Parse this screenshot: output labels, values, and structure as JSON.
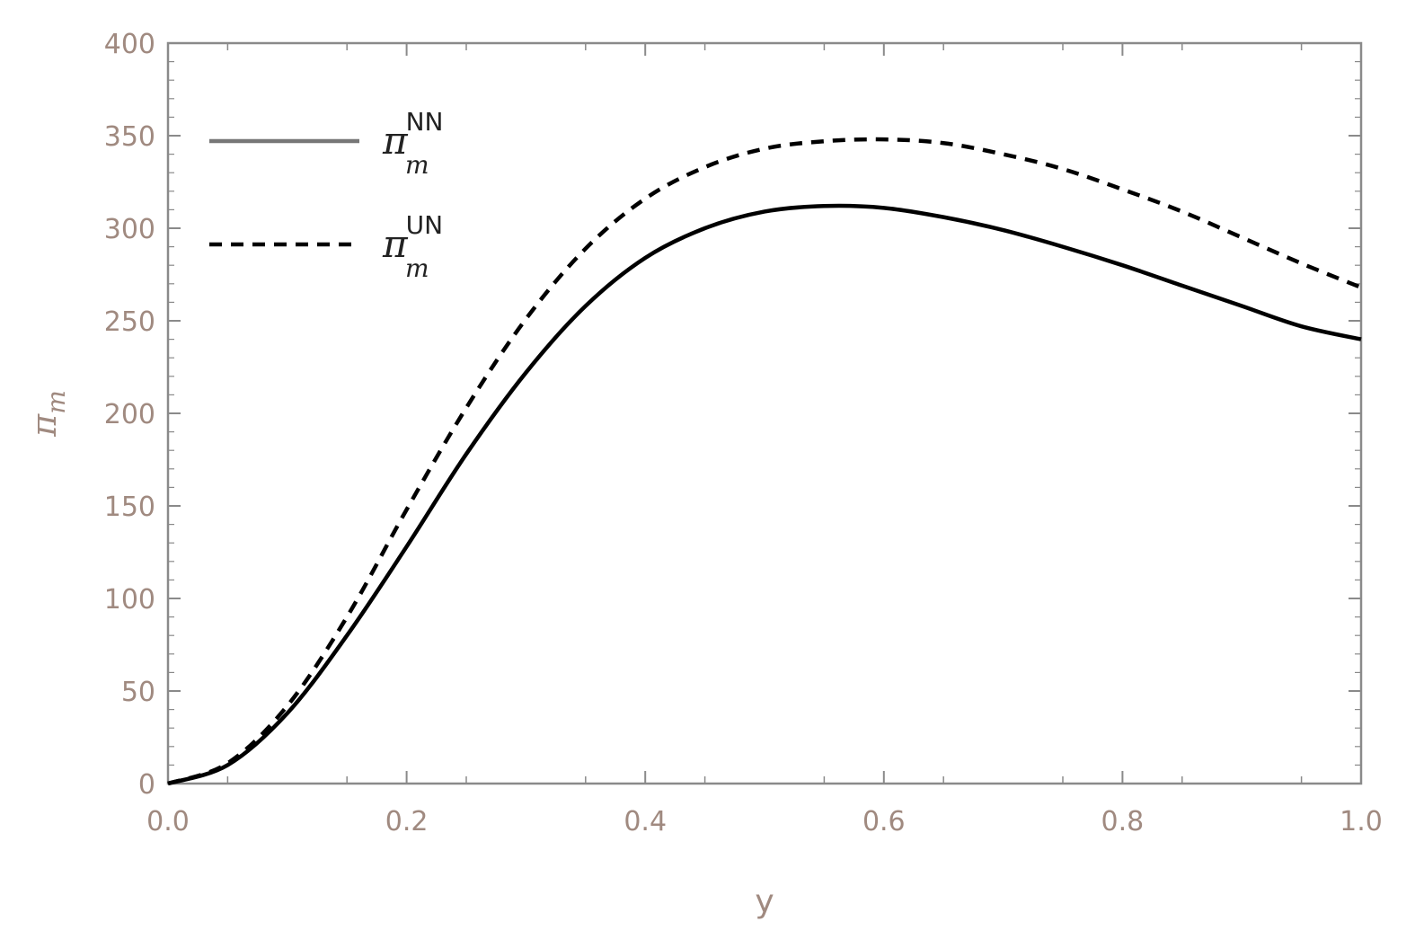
{
  "chart_data": {
    "type": "line",
    "title": "",
    "xlabel": "y",
    "ylabel": {
      "base": "π",
      "sub": "m"
    },
    "xlim": [
      0,
      1
    ],
    "ylim": [
      0,
      400
    ],
    "x_ticks": [
      "0.0",
      "0.2",
      "0.4",
      "0.6",
      "0.8",
      "1.0"
    ],
    "y_ticks": [
      "0",
      "50",
      "100",
      "150",
      "200",
      "250",
      "300",
      "350",
      "400"
    ],
    "grid": false,
    "legend_position": "top-left",
    "x": [
      0.0,
      0.05,
      0.1,
      0.15,
      0.2,
      0.25,
      0.3,
      0.35,
      0.4,
      0.45,
      0.5,
      0.55,
      0.6,
      0.65,
      0.7,
      0.75,
      0.8,
      0.85,
      0.9,
      0.95,
      1.0
    ],
    "series": [
      {
        "name": {
          "base": "π",
          "sub": "m",
          "sup": "NN"
        },
        "style": "solid",
        "color": "#000000",
        "values": [
          0,
          10,
          38,
          80,
          128,
          178,
          222,
          258,
          284,
          300,
          309,
          312,
          311,
          306,
          299,
          290,
          280,
          269,
          258,
          247,
          240
        ]
      },
      {
        "name": {
          "base": "π",
          "sub": "m",
          "sup": "UN"
        },
        "style": "dashed",
        "color": "#000000",
        "values": [
          0,
          11,
          42,
          90,
          148,
          203,
          251,
          289,
          316,
          333,
          343,
          347,
          348,
          346,
          340,
          332,
          321,
          309,
          295,
          281,
          268
        ]
      }
    ]
  }
}
